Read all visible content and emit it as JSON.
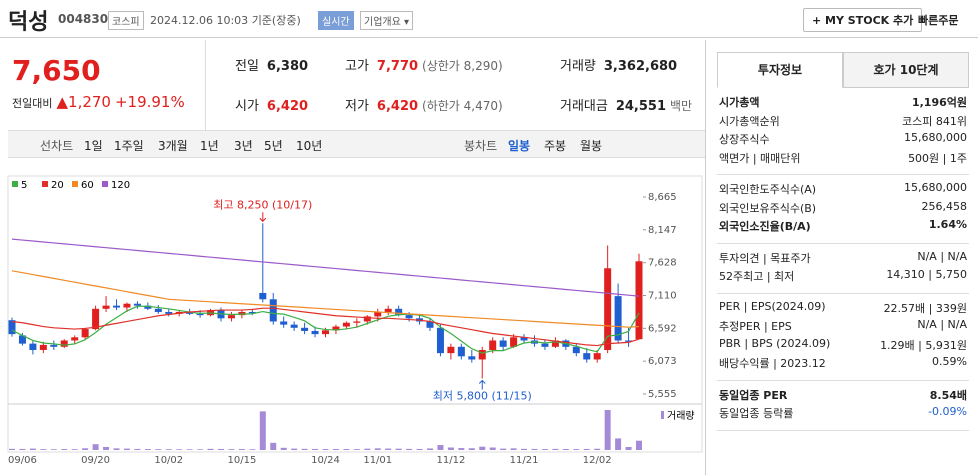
{
  "header": {
    "name": "덕성",
    "code": "004830",
    "market": "코스피",
    "datetime": "2024.12.06 10:03",
    "status": "기준(장중)",
    "realtime": "실시간",
    "company": "기업개요 ▾",
    "mystock": "+ MY STOCK 추가",
    "quick_order": "빠른주문"
  },
  "price": {
    "current": "7,650",
    "change_label": "전일대비",
    "change": "▲1,270",
    "change_pct": "+19.91%"
  },
  "quote": [
    [
      {
        "label": "전일",
        "value": "6,380"
      },
      {
        "label": "고가",
        "value": "7,770",
        "note": "(상한가 8,290)",
        "color": "#e0201e"
      },
      {
        "label": "거래량",
        "value": "3,362,680"
      }
    ],
    [
      {
        "label": "시가",
        "value": "6,420",
        "color": "#e0201e"
      },
      {
        "label": "저가",
        "value": "6,420",
        "note": "(하한가 4,470)",
        "color": "#e0201e"
      },
      {
        "label": "거래대금",
        "value": "24,551",
        "unit": "백만"
      }
    ]
  ],
  "tabs": {
    "line_label": "선차트",
    "line_periods": [
      "1일",
      "1주일",
      "3개월",
      "1년",
      "3년",
      "5년",
      "10년"
    ],
    "candle_label": "봉차트",
    "candle_periods": [
      "일봉",
      "주봉",
      "월봉"
    ],
    "active": "일봉"
  },
  "chart_data": {
    "type": "candlestick",
    "categories": [
      null,
      "09/06",
      null,
      null,
      null,
      null,
      null,
      null,
      "09/20",
      null,
      null,
      null,
      null,
      null,
      null,
      "10/02",
      null,
      null,
      null,
      null,
      null,
      null,
      "10/15",
      null,
      null,
      null,
      null,
      null,
      null,
      null,
      "10/24",
      null,
      null,
      null,
      null,
      "11/01",
      null,
      null,
      null,
      null,
      null,
      null,
      "11/12",
      null,
      null,
      null,
      null,
      null,
      null,
      "11/21",
      null,
      null,
      null,
      null,
      null,
      null,
      "12/02",
      null,
      null,
      null,
      null
    ],
    "open": [
      6720,
      6480,
      6350,
      6250,
      6330,
      6300,
      6400,
      6450,
      6580,
      6900,
      6950,
      6920,
      6980,
      6950,
      6900,
      6850,
      6820,
      6850,
      6820,
      6800,
      6880,
      6750,
      6800,
      6850,
      7150,
      7050,
      6700,
      6650,
      6600,
      6550,
      6500,
      6560,
      6620,
      6680,
      6700,
      6780,
      6850,
      6900,
      6800,
      6750,
      6700,
      6600,
      6200,
      6300,
      6150,
      6100,
      6250,
      6400,
      6300,
      6450,
      6400,
      6350,
      6300,
      6400,
      6300,
      6200,
      6100,
      6250,
      7100,
      6400,
      6420
    ],
    "high": [
      6760,
      6520,
      6400,
      6380,
      6400,
      6420,
      6480,
      6600,
      6950,
      7100,
      7050,
      7000,
      7020,
      7000,
      6960,
      6900,
      6880,
      6900,
      6880,
      6900,
      6920,
      6850,
      6880,
      6900,
      8250,
      7150,
      6780,
      6700,
      6680,
      6620,
      6600,
      6650,
      6700,
      6750,
      6800,
      6900,
      6950,
      6950,
      6850,
      6820,
      6750,
      6650,
      6350,
      6350,
      6250,
      6300,
      6450,
      6450,
      6500,
      6500,
      6480,
      6420,
      6450,
      6420,
      6350,
      6280,
      6250,
      7900,
      7300,
      6600,
      7770
    ],
    "low": [
      6460,
      6320,
      6180,
      6200,
      6250,
      6280,
      6350,
      6420,
      6560,
      6850,
      6880,
      6850,
      6900,
      6880,
      6820,
      6780,
      6780,
      6800,
      6760,
      6780,
      6700,
      6700,
      6750,
      6800,
      7000,
      6650,
      6600,
      6550,
      6500,
      6450,
      6450,
      6500,
      6580,
      6600,
      6650,
      6700,
      6800,
      6780,
      6700,
      6650,
      6550,
      6150,
      6100,
      6100,
      6050,
      5800,
      6200,
      6250,
      6280,
      6350,
      6300,
      6250,
      6280,
      6250,
      6150,
      6050,
      6050,
      6200,
      6350,
      6300,
      6420
    ],
    "close": [
      6500,
      6350,
      6250,
      6330,
      6300,
      6400,
      6450,
      6580,
      6900,
      6950,
      6920,
      6980,
      6950,
      6900,
      6850,
      6820,
      6850,
      6820,
      6800,
      6880,
      6750,
      6800,
      6850,
      6830,
      7050,
      6700,
      6650,
      6600,
      6550,
      6500,
      6560,
      6620,
      6680,
      6700,
      6780,
      6850,
      6900,
      6800,
      6750,
      6700,
      6600,
      6200,
      6300,
      6150,
      6100,
      6250,
      6400,
      6300,
      6450,
      6400,
      6350,
      6300,
      6400,
      6300,
      6200,
      6100,
      6200,
      7540,
      6400,
      6380,
      7650
    ],
    "volume": [
      420000,
      380000,
      510000,
      300000,
      260000,
      340000,
      300000,
      620000,
      2100000,
      1100000,
      600000,
      500000,
      380000,
      330000,
      300000,
      280000,
      260000,
      250000,
      240000,
      420000,
      380000,
      300000,
      350000,
      280000,
      14000000,
      2600000,
      800000,
      500000,
      420000,
      380000,
      330000,
      360000,
      340000,
      320000,
      480000,
      600000,
      520000,
      480000,
      400000,
      380000,
      560000,
      1800000,
      900000,
      700000,
      650000,
      1200000,
      900000,
      500000,
      600000,
      420000,
      380000,
      330000,
      400000,
      350000,
      320000,
      380000,
      450000,
      14500000,
      4200000,
      1100000,
      3362680
    ],
    "volume_label": "거래량",
    "volume_color": "#a58ad8",
    "up_color": "#e0201e",
    "down_color": "#1f5fd0",
    "series": [
      {
        "name": "5",
        "color": "#3cb043",
        "values": [
          6560,
          6480,
          6400,
          6360,
          6346,
          6326,
          6346,
          6412,
          6526,
          6656,
          6760,
          6866,
          6940,
          6940,
          6920,
          6900,
          6874,
          6848,
          6828,
          6834,
          6820,
          6810,
          6816,
          6822,
          6856,
          6826,
          6816,
          6766,
          6710,
          6600,
          6572,
          6566,
          6582,
          6612,
          6668,
          6726,
          6782,
          6806,
          6816,
          6800,
          6750,
          6610,
          6510,
          6390,
          6270,
          6200,
          6240,
          6240,
          6300,
          6360,
          6380,
          6360,
          6380,
          6350,
          6310,
          6260,
          6220,
          6468,
          6488,
          6544,
          6834
        ]
      },
      {
        "name": "20",
        "color": "#e0302a",
        "values": [
          6700,
          6680,
          6650,
          6620,
          6600,
          6590,
          6580,
          6590,
          6610,
          6640,
          6670,
          6700,
          6730,
          6760,
          6790,
          6810,
          6830,
          6850,
          6860,
          6870,
          6880,
          6880,
          6880,
          6890,
          6910,
          6910,
          6890,
          6870,
          6850,
          6830,
          6810,
          6790,
          6780,
          6770,
          6760,
          6750,
          6750,
          6740,
          6730,
          6720,
          6700,
          6660,
          6630,
          6600,
          6570,
          6540,
          6510,
          6490,
          6470,
          6450,
          6430,
          6410,
          6390,
          6370,
          6350,
          6330,
          6320,
          6350,
          6360,
          6370,
          6420
        ]
      },
      {
        "name": "60",
        "color": "#f08a24",
        "values": [
          7500,
          7470,
          7440,
          7410,
          7380,
          7350,
          7320,
          7290,
          7260,
          7230,
          7200,
          7170,
          7140,
          7110,
          7080,
          7050,
          7040,
          7030,
          7020,
          7010,
          7000,
          6990,
          6980,
          6970,
          6960,
          6950,
          6940,
          6930,
          6920,
          6910,
          6900,
          6890,
          6880,
          6870,
          6860,
          6850,
          6840,
          6830,
          6820,
          6810,
          6800,
          6790,
          6780,
          6770,
          6760,
          6750,
          6740,
          6730,
          6720,
          6710,
          6700,
          6690,
          6680,
          6670,
          6660,
          6650,
          6640,
          6630,
          6620,
          6610,
          6620
        ]
      },
      {
        "name": "120",
        "color": "#9b59c9",
        "values": [
          8000,
          7985,
          7970,
          7955,
          7940,
          7925,
          7910,
          7895,
          7880,
          7865,
          7850,
          7835,
          7820,
          7805,
          7790,
          7775,
          7760,
          7745,
          7730,
          7715,
          7700,
          7685,
          7670,
          7655,
          7640,
          7625,
          7610,
          7595,
          7580,
          7565,
          7550,
          7535,
          7520,
          7505,
          7490,
          7475,
          7460,
          7445,
          7430,
          7415,
          7400,
          7385,
          7370,
          7355,
          7340,
          7325,
          7310,
          7295,
          7280,
          7265,
          7250,
          7235,
          7220,
          7205,
          7190,
          7175,
          7160,
          7145,
          7130,
          7115,
          7100
        ]
      }
    ],
    "ylim": [
      5555,
      8665
    ],
    "yticks": [
      {
        "value": 5555,
        "label": "5,555"
      },
      {
        "value": 6073,
        "label": "6,073"
      },
      {
        "value": 6592,
        "label": "6,592"
      },
      {
        "value": 7110,
        "label": "7,110"
      },
      {
        "value": 7628,
        "label": "7,628"
      },
      {
        "value": 8147,
        "label": "8,147"
      },
      {
        "value": 8665,
        "label": "8,665"
      }
    ],
    "grid": false,
    "annotations": {
      "high": "최고 8,250 (10/17)",
      "low": "최저 5,800 (11/15)"
    }
  },
  "info": {
    "tabs": [
      "투자정보",
      "호가 10단계"
    ],
    "active": "투자정보",
    "sections": [
      [
        {
          "label": "시가총액",
          "value": "1,196억원",
          "bold": true
        },
        {
          "label": "시가총액순위",
          "value": "코스피 841위"
        },
        {
          "label": "상장주식수",
          "value": "15,680,000"
        },
        {
          "label": "액면가 | 매매단위",
          "value": "500원 | 1주"
        }
      ],
      [
        {
          "label": "외국인한도주식수(A)",
          "value": "15,680,000"
        },
        {
          "label": "외국인보유주식수(B)",
          "value": "256,458"
        },
        {
          "label": "외국인소진율(B/A)",
          "value": "1.64%",
          "bold": true
        }
      ],
      [
        {
          "label": "투자의견 | 목표주가",
          "value": "N/A | N/A"
        },
        {
          "label": "52주최고 | 최저",
          "value": "14,310 | 5,750"
        }
      ],
      [
        {
          "label": "PER | EPS(2024.09)",
          "value": "22.57배 | 339원"
        },
        {
          "label": "추정PER | EPS",
          "value": "N/A | N/A"
        },
        {
          "label": "PBR | BPS (2024.09)",
          "value": "1.29배 | 5,931원"
        },
        {
          "label": "배당수익률 | 2023.12",
          "value": "0.59%"
        }
      ],
      [
        {
          "label": "동일업종 PER",
          "value": "8.54배",
          "bold": true
        },
        {
          "label": "동일업종 등락률",
          "value": "-0.09%",
          "color": "#1f5fd0"
        }
      ]
    ]
  }
}
